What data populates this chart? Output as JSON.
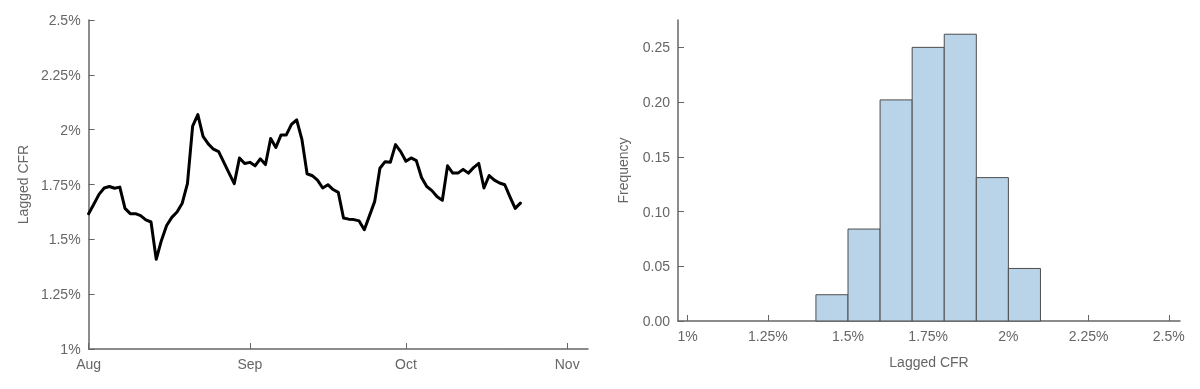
{
  "chart_data": [
    {
      "type": "line",
      "ylabel": "Lagged CFR",
      "grid": false,
      "marker": "none",
      "line_style": "solid",
      "x": [
        "--08-01",
        "--08-02",
        "--08-03",
        "--08-04",
        "--08-05",
        "--08-06",
        "--08-07",
        "--08-08",
        "--08-09",
        "--08-10",
        "--08-11",
        "--08-12",
        "--08-13",
        "--08-14",
        "--08-15",
        "--08-16",
        "--08-17",
        "--08-18",
        "--08-19",
        "--08-20",
        "--08-21",
        "--08-22",
        "--08-23",
        "--08-24",
        "--08-25",
        "--08-26",
        "--08-27",
        "--08-28",
        "--08-29",
        "--08-30",
        "--08-31",
        "--09-01",
        "--09-02",
        "--09-03",
        "--09-04",
        "--09-05",
        "--09-06",
        "--09-07",
        "--09-08",
        "--09-09",
        "--09-10",
        "--09-11",
        "--09-12",
        "--09-13",
        "--09-14",
        "--09-15",
        "--09-16",
        "--09-17",
        "--09-18",
        "--09-19",
        "--09-20",
        "--09-21",
        "--09-22",
        "--09-23",
        "--09-24",
        "--09-25",
        "--09-26",
        "--09-27",
        "--09-28",
        "--09-29",
        "--09-30",
        "--10-01",
        "--10-02",
        "--10-03",
        "--10-04",
        "--10-05",
        "--10-06",
        "--10-07",
        "--10-08",
        "--10-09",
        "--10-10",
        "--10-11",
        "--10-12",
        "--10-13",
        "--10-14",
        "--10-15",
        "--10-16",
        "--10-17",
        "--10-18",
        "--10-19",
        "--10-20",
        "--10-21",
        "--10-22",
        "--10-23"
      ],
      "series": [
        {
          "color": "#000000",
          "values": [
            1.617,
            1.66,
            1.705,
            1.734,
            1.741,
            1.733,
            1.738,
            1.641,
            1.617,
            1.617,
            1.608,
            1.589,
            1.579,
            1.409,
            1.495,
            1.563,
            1.6,
            1.625,
            1.665,
            1.754,
            2.016,
            2.069,
            1.969,
            1.935,
            1.911,
            1.9,
            1.851,
            1.802,
            1.754,
            1.871,
            1.846,
            1.851,
            1.835,
            1.867,
            1.841,
            1.96,
            1.919,
            1.976,
            1.976,
            2.024,
            2.045,
            1.956,
            1.799,
            1.79,
            1.77,
            1.734,
            1.749,
            1.727,
            1.714,
            1.597,
            1.592,
            1.59,
            1.584,
            1.544,
            1.608,
            1.673,
            1.824,
            1.854,
            1.851,
            1.932,
            1.9,
            1.856,
            1.871,
            1.859,
            1.782,
            1.741,
            1.722,
            1.694,
            1.678,
            1.835,
            1.802,
            1.802,
            1.819,
            1.802,
            1.827,
            1.846,
            1.734,
            1.791,
            1.77,
            1.757,
            1.749,
            1.694,
            1.641,
            1.665
          ]
        }
      ],
      "xlim": [
        "--08-01",
        "--11-05"
      ],
      "xticks": [
        {
          "value": "--08-01",
          "label": "Aug"
        },
        {
          "value": "--09-01",
          "label": "Sep"
        },
        {
          "value": "--10-01",
          "label": "Oct"
        },
        {
          "value": "--11-01",
          "label": "Nov"
        }
      ],
      "ylim": [
        1,
        2.5
      ],
      "yticks": [
        {
          "value": 1,
          "label": "1%"
        },
        {
          "value": 1.25,
          "label": "1.25%"
        },
        {
          "value": 1.5,
          "label": "1.5%"
        },
        {
          "value": 1.75,
          "label": "1.75%"
        },
        {
          "value": 2,
          "label": "2%"
        },
        {
          "value": 2.25,
          "label": "2.25%"
        },
        {
          "value": 2.5,
          "label": "2.5%"
        }
      ]
    },
    {
      "type": "histogram",
      "xlabel": "Lagged CFR",
      "ylabel": "Frequency",
      "grid": false,
      "color": "#b9d4e8",
      "bins": [
        1.4,
        1.5,
        1.6,
        1.7,
        1.8,
        1.9,
        2.0,
        2.1
      ],
      "values": [
        0.024,
        0.084,
        0.202,
        0.25,
        0.262,
        0.131,
        0.048
      ],
      "xlim": [
        0.97,
        2.535
      ],
      "xticks": [
        {
          "value": 1,
          "label": "1%"
        },
        {
          "value": 1.25,
          "label": "1.25%"
        },
        {
          "value": 1.5,
          "label": "1.5%"
        },
        {
          "value": 1.75,
          "label": "1.75%"
        },
        {
          "value": 2,
          "label": "2%"
        },
        {
          "value": 2.25,
          "label": "2.25%"
        },
        {
          "value": 2.5,
          "label": "2.5%"
        }
      ],
      "ylim": [
        0,
        0.275
      ],
      "yticks": [
        {
          "value": 0,
          "label": "0.00"
        },
        {
          "value": 0.05,
          "label": "0.05"
        },
        {
          "value": 0.1,
          "label": "0.10"
        },
        {
          "value": 0.15,
          "label": "0.15"
        },
        {
          "value": 0.2,
          "label": "0.20"
        },
        {
          "value": 0.25,
          "label": "0.25"
        }
      ]
    }
  ]
}
